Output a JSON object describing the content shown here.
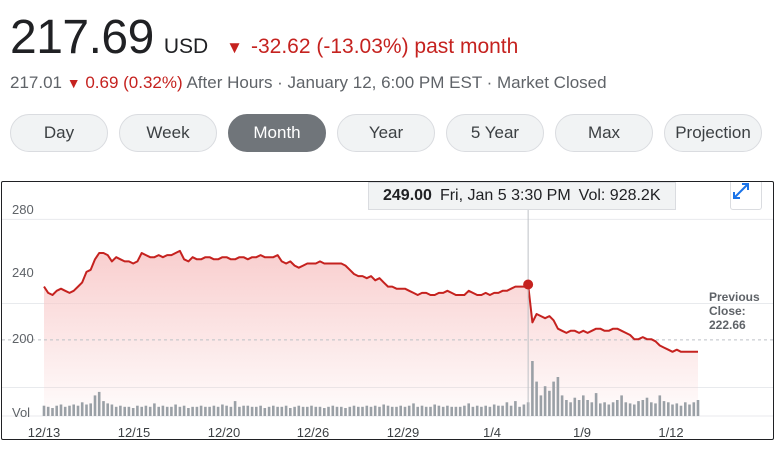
{
  "header": {
    "price": "217.69",
    "currency": "USD",
    "change_arrow": "▼",
    "change": "-32.62 (-13.03%)",
    "change_period": "past month"
  },
  "after_hours": {
    "price": "217.01",
    "arrow": "▼",
    "change": "0.69 (0.32%)",
    "text": "After Hours · January 12, 6:00 PM EST · Market Closed"
  },
  "tabs": [
    {
      "label": "Day",
      "active": false
    },
    {
      "label": "Week",
      "active": false
    },
    {
      "label": "Month",
      "active": true
    },
    {
      "label": "Year",
      "active": false
    },
    {
      "label": "5 Year",
      "active": false
    },
    {
      "label": "Max",
      "active": false
    },
    {
      "label": "Projection",
      "active": false
    }
  ],
  "tooltip": {
    "price": "249.00",
    "date": "Fri, Jan 5 3:30 PM",
    "volume": "Vol: 928.2K"
  },
  "previous_close": {
    "label_line1": "Previous",
    "label_line2": "Close:",
    "value": "222.66"
  },
  "icons": {
    "expand": "expand-arrows-icon"
  },
  "colors": {
    "down": "#c5221f",
    "line": "#c5221f",
    "fill": "#f8c9c9",
    "volume": "#9aa0a6"
  },
  "chart_data": {
    "type": "area",
    "y_tick_labels": [
      "280",
      "240",
      "200",
      "Vol"
    ],
    "ylim": [
      186,
      293
    ],
    "x_tick_labels": [
      "12/13",
      "12/15",
      "12/20",
      "12/26",
      "12/29",
      "1/4",
      "1/9",
      "1/12"
    ],
    "previous_close": 222.66,
    "hover_index": 114,
    "price": [
      248,
      245,
      244,
      246,
      247,
      246,
      245,
      246,
      248,
      250,
      255,
      256,
      261,
      264,
      264,
      263,
      260,
      262,
      261,
      260,
      260,
      259,
      260,
      264,
      263,
      262,
      262,
      263,
      262,
      263,
      263,
      264,
      265,
      261,
      260,
      262,
      261,
      261,
      262,
      262,
      261,
      261,
      262,
      262,
      261,
      261,
      262,
      262,
      261,
      262,
      262,
      263,
      262,
      262,
      262,
      263,
      260,
      259,
      260,
      258,
      257,
      258,
      259,
      259,
      259,
      260,
      259,
      259,
      259,
      259,
      259,
      258,
      256,
      254,
      253,
      253,
      252,
      253,
      251,
      252,
      250,
      248,
      248,
      247,
      247,
      247,
      246,
      245,
      244,
      245,
      245,
      244,
      244,
      245,
      245,
      246,
      245,
      244,
      244,
      244,
      246,
      245,
      244,
      244,
      245,
      244,
      245,
      245,
      246,
      246,
      247,
      248,
      248,
      248,
      249,
      231,
      235,
      234,
      233,
      234,
      232,
      228,
      227,
      226,
      227,
      227,
      226,
      227,
      226,
      227,
      228,
      228,
      227,
      227,
      228,
      228,
      227,
      226,
      225,
      223,
      223,
      224,
      223,
      223,
      222,
      220,
      219,
      218,
      217,
      218,
      217,
      217,
      217,
      217,
      217
    ],
    "volume": [
      9,
      8,
      7,
      9,
      10,
      8,
      9,
      10,
      9,
      12,
      10,
      11,
      18,
      21,
      13,
      11,
      10,
      8,
      9,
      8,
      8,
      7,
      9,
      8,
      9,
      8,
      11,
      8,
      9,
      8,
      8,
      10,
      8,
      9,
      7,
      8,
      8,
      9,
      8,
      8,
      9,
      8,
      10,
      9,
      8,
      13,
      8,
      9,
      9,
      8,
      8,
      9,
      7,
      8,
      9,
      8,
      8,
      9,
      7,
      8,
      9,
      8,
      8,
      9,
      8,
      8,
      7,
      8,
      9,
      8,
      8,
      7,
      8,
      9,
      8,
      8,
      9,
      8,
      9,
      8,
      10,
      9,
      8,
      8,
      9,
      8,
      9,
      11,
      8,
      9,
      8,
      8,
      10,
      9,
      8,
      9,
      8,
      8,
      8,
      9,
      11,
      8,
      9,
      8,
      9,
      8,
      10,
      9,
      9,
      12,
      9,
      13,
      8,
      10,
      12,
      48,
      30,
      18,
      26,
      22,
      30,
      34,
      18,
      14,
      12,
      16,
      14,
      18,
      14,
      12,
      20,
      11,
      12,
      10,
      12,
      14,
      18,
      12,
      11,
      10,
      13,
      14,
      16,
      12,
      11,
      18,
      13,
      12,
      10,
      11,
      9,
      12,
      10,
      12,
      14
    ]
  }
}
